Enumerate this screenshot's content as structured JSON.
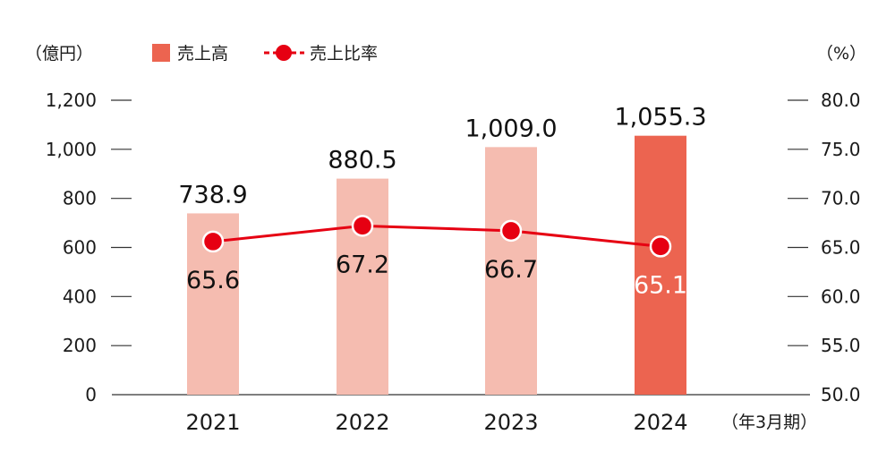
{
  "chart_data": {
    "type": "bar",
    "categories": [
      "2021",
      "2022",
      "2023",
      "2024"
    ],
    "series": [
      {
        "name": "売上高",
        "type": "bar",
        "axis": "left",
        "values": [
          738.9,
          880.5,
          1009.0,
          1055.3
        ],
        "labels": [
          "738.9",
          "880.5",
          "1,009.0",
          "1,055.3"
        ]
      },
      {
        "name": "売上比率",
        "type": "line",
        "axis": "right",
        "values": [
          65.6,
          67.2,
          66.7,
          65.1
        ],
        "labels": [
          "65.6",
          "67.2",
          "66.7",
          "65.1"
        ]
      }
    ],
    "left_axis": {
      "unit": "（億円）",
      "ylim": [
        0,
        1200
      ],
      "ticks": [
        "0",
        "200",
        "400",
        "600",
        "800",
        "1,000",
        "1,200"
      ]
    },
    "right_axis": {
      "unit": "（%）",
      "ylim": [
        50,
        80
      ],
      "ticks": [
        "50.0",
        "55.0",
        "60.0",
        "65.0",
        "70.0",
        "75.0",
        "80.0"
      ]
    },
    "x_unit": "（年3月期）",
    "legend": {
      "position": "top-left",
      "bar_label": "売上高",
      "line_label": "売上比率"
    },
    "colors": {
      "bar_light": "#f5bcb0",
      "bar_highlight": "#ec6450",
      "line": "#e60012",
      "marker_fill": "#e60012",
      "marker_stroke": "#ffffff",
      "axis": "#333333"
    },
    "highlight_index": 3,
    "grid": false
  }
}
